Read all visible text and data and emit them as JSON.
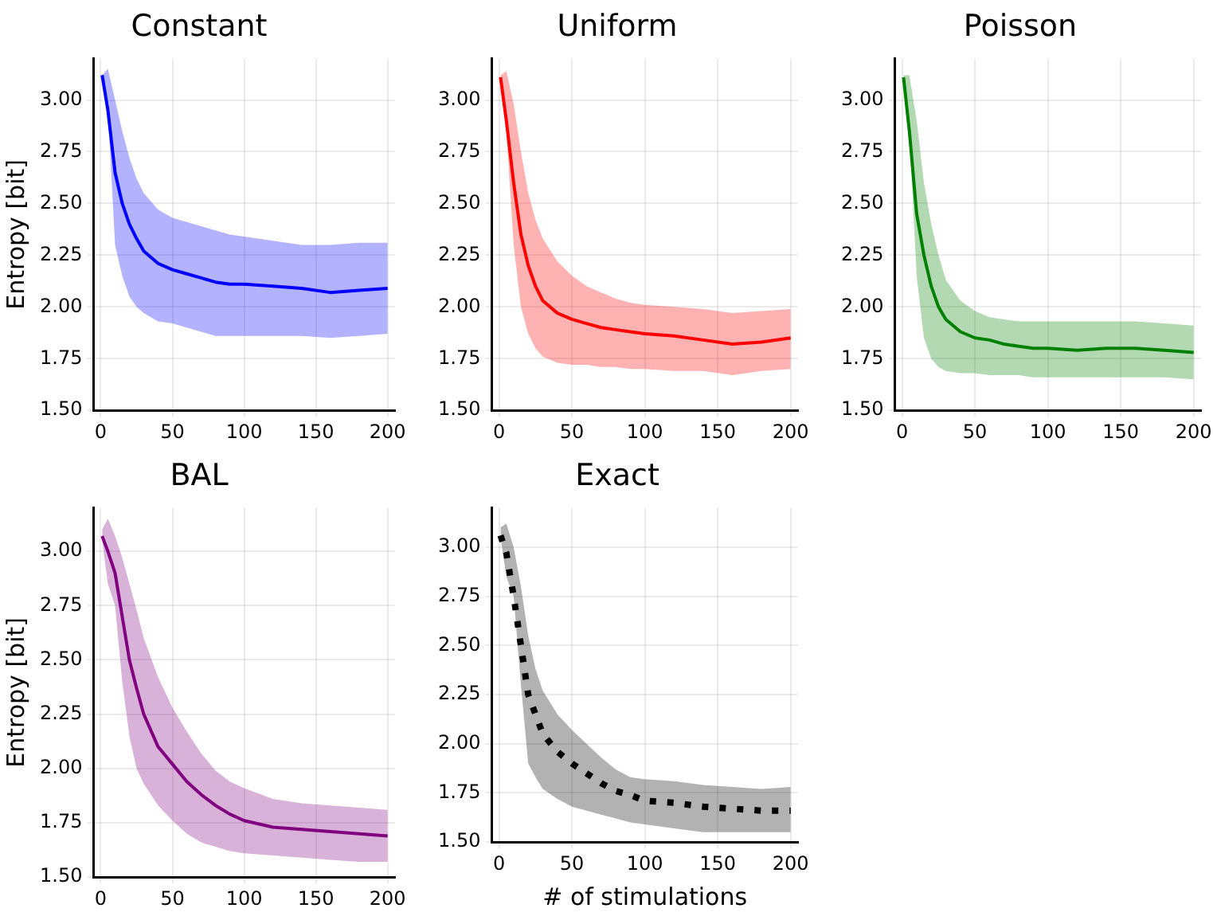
{
  "chart_data": [
    {
      "type": "line",
      "title": "Constant",
      "ylabel": "Entropy [bit]",
      "x": [
        1,
        5,
        10,
        15,
        20,
        25,
        30,
        40,
        50,
        60,
        70,
        80,
        90,
        100,
        120,
        140,
        160,
        180,
        200
      ],
      "xlim": [
        -5,
        205
      ],
      "xticks": [
        0,
        50,
        100,
        150,
        200
      ],
      "ylim": [
        1.5,
        3.2
      ],
      "yticks": [
        {
          "value": 1.5,
          "label": "1.50"
        },
        {
          "value": 1.75,
          "label": "1.75"
        },
        {
          "value": 2,
          "label": "2.00"
        },
        {
          "value": 2.25,
          "label": "2.25"
        },
        {
          "value": 2.5,
          "label": "2.50"
        },
        {
          "value": 2.75,
          "label": "2.75"
        },
        {
          "value": 3,
          "label": "3.00"
        }
      ],
      "grid": true,
      "series": [
        {
          "color": "#0000ff",
          "line_style": "solid",
          "values": [
            3.12,
            2.95,
            2.65,
            2.5,
            2.4,
            2.33,
            2.27,
            2.21,
            2.18,
            2.16,
            2.14,
            2.12,
            2.11,
            2.11,
            2.1,
            2.09,
            2.07,
            2.08,
            2.09
          ],
          "upper": [
            3.12,
            3.15,
            3.0,
            2.85,
            2.72,
            2.62,
            2.55,
            2.47,
            2.43,
            2.41,
            2.39,
            2.37,
            2.35,
            2.34,
            2.32,
            2.3,
            2.3,
            2.31,
            2.31
          ],
          "lower": [
            3.1,
            2.95,
            2.3,
            2.15,
            2.05,
            2.0,
            1.97,
            1.93,
            1.92,
            1.9,
            1.88,
            1.86,
            1.86,
            1.86,
            1.86,
            1.86,
            1.85,
            1.86,
            1.87
          ]
        }
      ]
    },
    {
      "type": "line",
      "title": "Uniform",
      "x": [
        1,
        5,
        10,
        15,
        20,
        25,
        30,
        40,
        50,
        60,
        70,
        80,
        90,
        100,
        120,
        140,
        160,
        180,
        200
      ],
      "xlim": [
        -5,
        205
      ],
      "xticks": [
        0,
        50,
        100,
        150,
        200
      ],
      "ylim": [
        1.5,
        3.2
      ],
      "yticks": [
        {
          "value": 1.5,
          "label": "1.50"
        },
        {
          "value": 1.75,
          "label": "1.75"
        },
        {
          "value": 2,
          "label": "2.00"
        },
        {
          "value": 2.25,
          "label": "2.25"
        },
        {
          "value": 2.5,
          "label": "2.50"
        },
        {
          "value": 2.75,
          "label": "2.75"
        },
        {
          "value": 3,
          "label": "3.00"
        }
      ],
      "grid": true,
      "series": [
        {
          "color": "#ff0000",
          "line_style": "solid",
          "values": [
            3.11,
            2.9,
            2.6,
            2.35,
            2.2,
            2.1,
            2.03,
            1.97,
            1.94,
            1.92,
            1.9,
            1.89,
            1.88,
            1.87,
            1.86,
            1.84,
            1.82,
            1.83,
            1.85
          ],
          "upper": [
            3.12,
            3.14,
            2.98,
            2.75,
            2.55,
            2.42,
            2.33,
            2.22,
            2.15,
            2.1,
            2.07,
            2.04,
            2.02,
            2.01,
            2.0,
            1.99,
            1.97,
            1.98,
            1.99
          ],
          "lower": [
            3.1,
            2.85,
            2.3,
            2.0,
            1.87,
            1.8,
            1.76,
            1.73,
            1.72,
            1.72,
            1.71,
            1.71,
            1.7,
            1.7,
            1.69,
            1.69,
            1.67,
            1.69,
            1.7
          ]
        }
      ]
    },
    {
      "type": "line",
      "title": "Poisson",
      "x": [
        1,
        5,
        10,
        15,
        20,
        25,
        30,
        40,
        50,
        60,
        70,
        80,
        90,
        100,
        120,
        140,
        160,
        180,
        200
      ],
      "xlim": [
        -5,
        205
      ],
      "xticks": [
        0,
        50,
        100,
        150,
        200
      ],
      "ylim": [
        1.5,
        3.2
      ],
      "yticks": [
        {
          "value": 1.5,
          "label": "1.50"
        },
        {
          "value": 1.75,
          "label": "1.75"
        },
        {
          "value": 2,
          "label": "2.00"
        },
        {
          "value": 2.25,
          "label": "2.25"
        },
        {
          "value": 2.5,
          "label": "2.50"
        },
        {
          "value": 2.75,
          "label": "2.75"
        },
        {
          "value": 3,
          "label": "3.00"
        }
      ],
      "grid": true,
      "series": [
        {
          "color": "#008000",
          "line_style": "solid",
          "values": [
            3.11,
            2.85,
            2.45,
            2.25,
            2.1,
            2.0,
            1.94,
            1.88,
            1.85,
            1.84,
            1.82,
            1.81,
            1.8,
            1.8,
            1.79,
            1.8,
            1.8,
            1.79,
            1.78
          ],
          "upper": [
            3.12,
            3.12,
            2.9,
            2.6,
            2.4,
            2.25,
            2.13,
            2.03,
            1.98,
            1.95,
            1.94,
            1.93,
            1.93,
            1.93,
            1.93,
            1.93,
            1.93,
            1.92,
            1.91
          ],
          "lower": [
            3.1,
            2.85,
            2.15,
            1.85,
            1.75,
            1.71,
            1.69,
            1.68,
            1.68,
            1.67,
            1.67,
            1.67,
            1.66,
            1.66,
            1.66,
            1.66,
            1.66,
            1.66,
            1.65
          ]
        }
      ]
    },
    {
      "type": "line",
      "title": "BAL",
      "ylabel": "Entropy [bit]",
      "x": [
        1,
        5,
        10,
        15,
        20,
        25,
        30,
        40,
        50,
        60,
        70,
        80,
        90,
        100,
        120,
        140,
        160,
        180,
        200
      ],
      "xlim": [
        -5,
        205
      ],
      "xticks": [
        0,
        50,
        100,
        150,
        200
      ],
      "ylim": [
        1.5,
        3.2
      ],
      "yticks": [
        {
          "value": 1.5,
          "label": "1.50"
        },
        {
          "value": 1.75,
          "label": "1.75"
        },
        {
          "value": 2,
          "label": "2.00"
        },
        {
          "value": 2.25,
          "label": "2.25"
        },
        {
          "value": 2.5,
          "label": "2.50"
        },
        {
          "value": 2.75,
          "label": "2.75"
        },
        {
          "value": 3,
          "label": "3.00"
        }
      ],
      "grid": true,
      "series": [
        {
          "color": "#800080",
          "line_style": "solid",
          "values": [
            3.07,
            3.0,
            2.9,
            2.7,
            2.5,
            2.37,
            2.25,
            2.1,
            2.02,
            1.94,
            1.88,
            1.83,
            1.79,
            1.76,
            1.73,
            1.72,
            1.71,
            1.7,
            1.69
          ],
          "upper": [
            3.1,
            3.15,
            3.07,
            2.97,
            2.85,
            2.73,
            2.6,
            2.42,
            2.28,
            2.17,
            2.07,
            1.99,
            1.94,
            1.91,
            1.86,
            1.84,
            1.83,
            1.82,
            1.81
          ],
          "lower": [
            3.05,
            2.85,
            2.75,
            2.4,
            2.15,
            2.0,
            1.93,
            1.83,
            1.76,
            1.7,
            1.66,
            1.64,
            1.62,
            1.61,
            1.6,
            1.59,
            1.58,
            1.57,
            1.57
          ]
        }
      ]
    },
    {
      "type": "line",
      "title": "Exact",
      "xlabel": "# of stimulations",
      "x": [
        1,
        5,
        10,
        15,
        20,
        25,
        30,
        40,
        50,
        60,
        70,
        80,
        90,
        100,
        120,
        140,
        160,
        180,
        200
      ],
      "xlim": [
        -5,
        205
      ],
      "xticks": [
        0,
        50,
        100,
        150,
        200
      ],
      "ylim": [
        1.5,
        3.2
      ],
      "yticks": [
        {
          "value": 1.5,
          "label": "1.50"
        },
        {
          "value": 1.75,
          "label": "1.75"
        },
        {
          "value": 2,
          "label": "2.00"
        },
        {
          "value": 2.25,
          "label": "2.25"
        },
        {
          "value": 2.5,
          "label": "2.50"
        },
        {
          "value": 2.75,
          "label": "2.75"
        },
        {
          "value": 3,
          "label": "3.00"
        }
      ],
      "grid": true,
      "series": [
        {
          "color": "#000000",
          "line_style": "dotted",
          "values": [
            3.06,
            2.97,
            2.75,
            2.5,
            2.25,
            2.15,
            2.05,
            1.96,
            1.9,
            1.85,
            1.8,
            1.76,
            1.74,
            1.71,
            1.7,
            1.68,
            1.67,
            1.66,
            1.66
          ],
          "upper": [
            3.1,
            3.12,
            3.0,
            2.8,
            2.55,
            2.38,
            2.27,
            2.15,
            2.07,
            2.0,
            1.93,
            1.87,
            1.83,
            1.82,
            1.81,
            1.79,
            1.78,
            1.77,
            1.78
          ],
          "lower": [
            3.05,
            2.85,
            2.75,
            2.3,
            1.9,
            1.83,
            1.77,
            1.72,
            1.68,
            1.66,
            1.64,
            1.62,
            1.6,
            1.59,
            1.57,
            1.55,
            1.55,
            1.55,
            1.55
          ]
        }
      ]
    }
  ]
}
